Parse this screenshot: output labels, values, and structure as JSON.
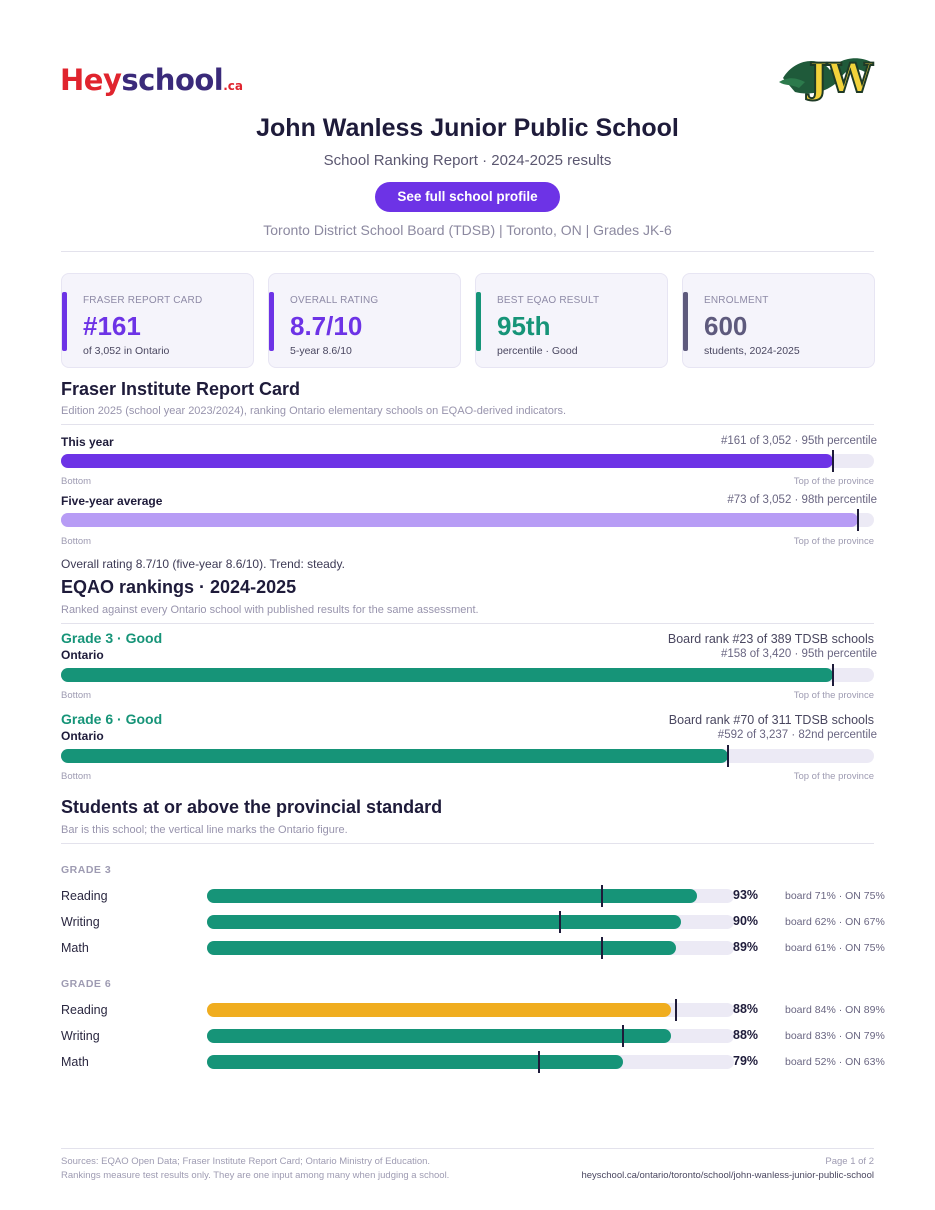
{
  "brand": {
    "hey": "Hey",
    "school": "school",
    "ca": ".ca"
  },
  "school": {
    "name": "John Wanless Junior Public School",
    "report_subtitle": "School Ranking Report  ·  2024-2025 results",
    "cta_label": "See full school profile",
    "meta": "Toronto District School Board (TDSB)  |  Toronto, ON  |  Grades JK-6",
    "crest_letters": "JW"
  },
  "cards": [
    {
      "label": "FRASER REPORT CARD",
      "value": "#161",
      "sub": "of 3,052 in Ontario",
      "color": "#6d33e6"
    },
    {
      "label": "OVERALL RATING",
      "value": "8.7/10",
      "sub": "5-year 8.6/10",
      "color": "#6d33e6"
    },
    {
      "label": "BEST EQAO RESULT",
      "value": "95th",
      "sub": "percentile  ·  Good",
      "color": "#169478"
    },
    {
      "label": "ENROLMENT",
      "value": "600",
      "sub": "students, 2024-2025",
      "color": "#5e5a7d"
    }
  ],
  "fraser": {
    "title": "Fraser Institute Report Card",
    "note": "Edition 2025 (school year 2023/2024), ranking Ontario elementary schools on EQAO-derived indicators.",
    "rows": [
      {
        "label": "This year",
        "rank": "#161 of 3,052  ·  95th percentile",
        "percentile": 95,
        "color": "#6d33e6"
      },
      {
        "label": "Five-year average",
        "rank": "#73 of 3,052  ·  98th percentile",
        "percentile": 98,
        "color": "#b79cf5"
      }
    ],
    "bottom_label": "Bottom",
    "top_label": "Top of the province",
    "summary": "Overall rating 8.7/10 (five-year 8.6/10). Trend: steady."
  },
  "eqao": {
    "title": "EQAO rankings  ·  2024-2025",
    "note": "Ranked against every Ontario school with published results for the same assessment.",
    "rows": [
      {
        "grade": "Grade 3  ·  Good",
        "board": "Board rank #23 of 389 TDSB schools",
        "scope": "Ontario",
        "rank": "#158 of 3,420  ·  95th percentile",
        "percentile": 95
      },
      {
        "grade": "Grade 6  ·  Good",
        "board": "Board rank #70 of 311 TDSB schools",
        "scope": "Ontario",
        "rank": "#592 of 3,237  ·  82nd percentile",
        "percentile": 82
      }
    ],
    "bottom_label": "Bottom",
    "top_label": "Top of the province"
  },
  "standard": {
    "title": "Students at or above the provincial standard",
    "note": "Bar is this school; the vertical line marks the Ontario figure.",
    "groups": [
      {
        "label": "GRADE 3",
        "subjects": [
          {
            "name": "Reading",
            "pct_label": "93%",
            "pct": 93,
            "ontario": 75,
            "cmp": "board 71%  ·  ON 75%",
            "color": "#169478"
          },
          {
            "name": "Writing",
            "pct_label": "90%",
            "pct": 90,
            "ontario": 67,
            "cmp": "board 62%  ·  ON 67%",
            "color": "#169478"
          },
          {
            "name": "Math",
            "pct_label": "89%",
            "pct": 89,
            "ontario": 75,
            "cmp": "board 61%  ·  ON 75%",
            "color": "#169478"
          }
        ]
      },
      {
        "label": "GRADE 6",
        "subjects": [
          {
            "name": "Reading",
            "pct_label": "88%",
            "pct": 88,
            "ontario": 89,
            "cmp": "board 84%  ·  ON 89%",
            "color": "#f0ad1f"
          },
          {
            "name": "Writing",
            "pct_label": "88%",
            "pct": 88,
            "ontario": 79,
            "cmp": "board 83%  ·  ON 79%",
            "color": "#169478"
          },
          {
            "name": "Math",
            "pct_label": "79%",
            "pct": 79,
            "ontario": 63,
            "cmp": "board 52%  ·  ON 63%",
            "color": "#169478"
          }
        ]
      }
    ]
  },
  "footer": {
    "sources": "Sources: EQAO Open Data; Fraser Institute Report Card; Ontario Ministry of Education.",
    "disclaimer": "Rankings measure test results only. They are one input among many when judging a school.",
    "page": "Page 1 of 2",
    "url": "heyschool.ca/ontario/toronto/school/john-wanless-junior-public-school"
  }
}
